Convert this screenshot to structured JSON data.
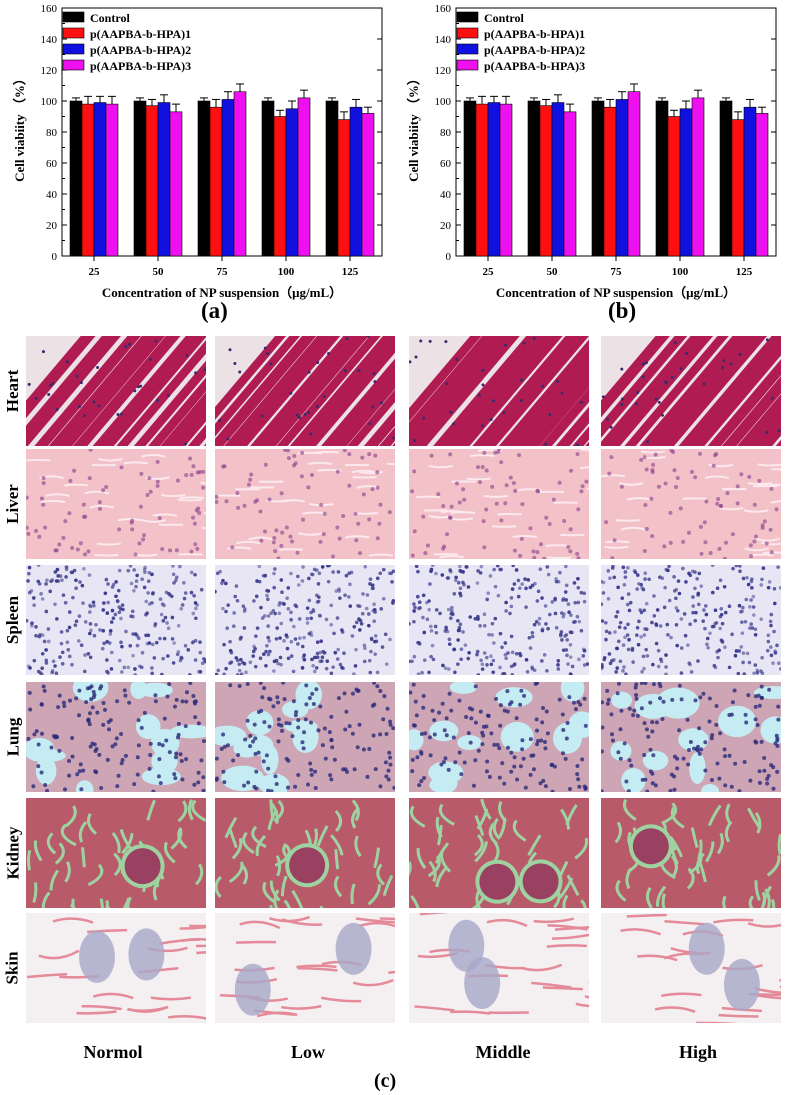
{
  "chart_data": [
    {
      "type": "bar",
      "panel": "(a)",
      "categories": [
        "25",
        "50",
        "75",
        "100",
        "125"
      ],
      "series": [
        {
          "name": "Control",
          "color": "#000000",
          "values": [
            100,
            100,
            100,
            100,
            100
          ],
          "errors": [
            2,
            2,
            2,
            2,
            2
          ]
        },
        {
          "name": "p(AAPBA-b-HPA)1",
          "color": "#ff1010",
          "values": [
            98,
            97,
            96,
            90,
            88
          ],
          "errors": [
            5,
            4,
            5,
            4,
            5
          ]
        },
        {
          "name": "p(AAPBA-b-HPA)2",
          "color": "#1010e0",
          "values": [
            99,
            99,
            101,
            95,
            96
          ],
          "errors": [
            4,
            5,
            5,
            5,
            5
          ]
        },
        {
          "name": "p(AAPBA-b-HPA)3",
          "color": "#ee10ee",
          "values": [
            98,
            93,
            106,
            102,
            92
          ],
          "errors": [
            5,
            5,
            5,
            5,
            4
          ]
        }
      ],
      "xlabel": "Concentration of NP suspension（μg/mL）",
      "ylabel": "Cell viabiity （%）",
      "ylim": [
        0,
        160
      ],
      "yticks": [
        0,
        20,
        40,
        60,
        80,
        100,
        120,
        140,
        160
      ],
      "legend": "top-left"
    },
    {
      "type": "bar",
      "panel": "(b)",
      "categories": [
        "25",
        "50",
        "75",
        "100",
        "125"
      ],
      "series": [
        {
          "name": "Control",
          "color": "#000000",
          "values": [
            100,
            100,
            100,
            100,
            100
          ],
          "errors": [
            2,
            2,
            2,
            2,
            2
          ]
        },
        {
          "name": "p(AAPBA-b-HPA)1",
          "color": "#ff1010",
          "values": [
            98,
            97,
            96,
            90,
            88
          ],
          "errors": [
            5,
            4,
            5,
            4,
            5
          ]
        },
        {
          "name": "p(AAPBA-b-HPA)2",
          "color": "#1010e0",
          "values": [
            99,
            99,
            101,
            95,
            96
          ],
          "errors": [
            4,
            5,
            5,
            5,
            5
          ]
        },
        {
          "name": "p(AAPBA-b-HPA)3",
          "color": "#ee10ee",
          "values": [
            98,
            93,
            106,
            102,
            92
          ],
          "errors": [
            5,
            5,
            5,
            5,
            4
          ]
        }
      ],
      "xlabel": "Concentration of NP suspension（μg/mL）",
      "ylabel": "Cell viabiity （%）",
      "ylim": [
        0,
        160
      ],
      "yticks": [
        0,
        20,
        40,
        60,
        80,
        100,
        120,
        140,
        160
      ],
      "legend": "top-left"
    }
  ],
  "panel_labels": {
    "a": "(a)",
    "b": "(b)",
    "c": "(c)"
  },
  "histology": {
    "rows": [
      {
        "label": "Heart",
        "tissue": "heart"
      },
      {
        "label": "Liver",
        "tissue": "liver"
      },
      {
        "label": "Spleen",
        "tissue": "spleen"
      },
      {
        "label": "Lung",
        "tissue": "lung"
      },
      {
        "label": "Kidney",
        "tissue": "kidney"
      },
      {
        "label": "Skin",
        "tissue": "skin"
      }
    ],
    "columns": [
      "Normol",
      "Low",
      "Middle",
      "High"
    ],
    "palette": {
      "heart": {
        "bg": "#ece2e6",
        "fg": "#b01c52"
      },
      "liver": {
        "bg": "#f2c2c8",
        "fg": "#d88a9a"
      },
      "spleen": {
        "bg": "#e8e6f4",
        "fg": "#3a3a8c"
      },
      "lung": {
        "bg": "#c4ecf2",
        "fg": "#d08ea0"
      },
      "kidney": {
        "bg": "#b85a6a",
        "fg": "#9ed2a0"
      },
      "skin": {
        "bg": "#f4f0f2",
        "fg": "#e48a98"
      }
    }
  }
}
